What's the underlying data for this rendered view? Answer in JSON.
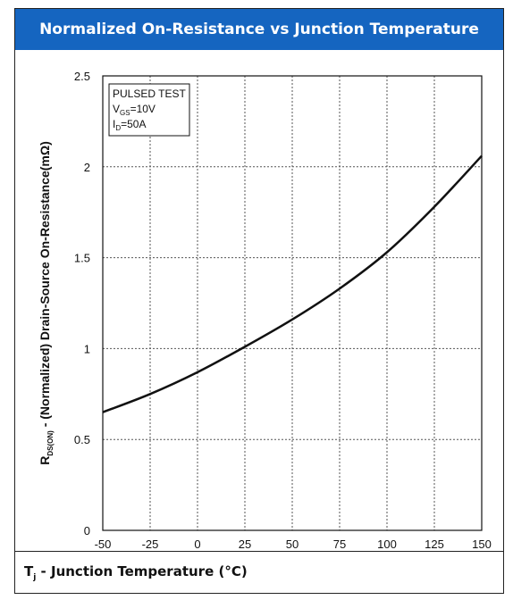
{
  "header": {
    "title": "Normalized On-Resistance vs Junction Temperature"
  },
  "footer": {
    "xlabel_main": "T",
    "xlabel_sub": "j",
    "xlabel_rest": " - Junction Temperature (°C)"
  },
  "chart_data": {
    "type": "line",
    "title": "Normalized On-Resistance vs Junction Temperature",
    "xlabel": "Tj - Junction Temperature (°C)",
    "ylabel": "RDS(ON) - (Normalized) Drain-Source On-Resistance(mΩ)",
    "ylabel_parts": {
      "main": "R",
      "sub": "DS(ON)",
      "rest": " - (Normalized) Drain-Source On-Resistance(mΩ)"
    },
    "xlim": [
      -50,
      150
    ],
    "ylim": [
      0,
      2.5
    ],
    "xticks": [
      "-50",
      "-25",
      "0",
      "25",
      "50",
      "75",
      "100",
      "125",
      "150"
    ],
    "yticks": [
      "0",
      "0.5",
      "1",
      "1.5",
      "2",
      "2.5"
    ],
    "grid": true,
    "annotation": {
      "line1": "PULSED TEST",
      "line2_main": "V",
      "line2_sub": "GS",
      "line2_rest": "=10V",
      "line3_main": "I",
      "line3_sub": "D",
      "line3_rest": "=50A"
    },
    "series": [
      {
        "x": [
          -50,
          -25,
          0,
          25,
          50,
          75,
          100,
          125,
          150
        ],
        "y": [
          0.65,
          0.75,
          0.87,
          1.01,
          1.16,
          1.33,
          1.53,
          1.78,
          2.06
        ]
      }
    ]
  }
}
